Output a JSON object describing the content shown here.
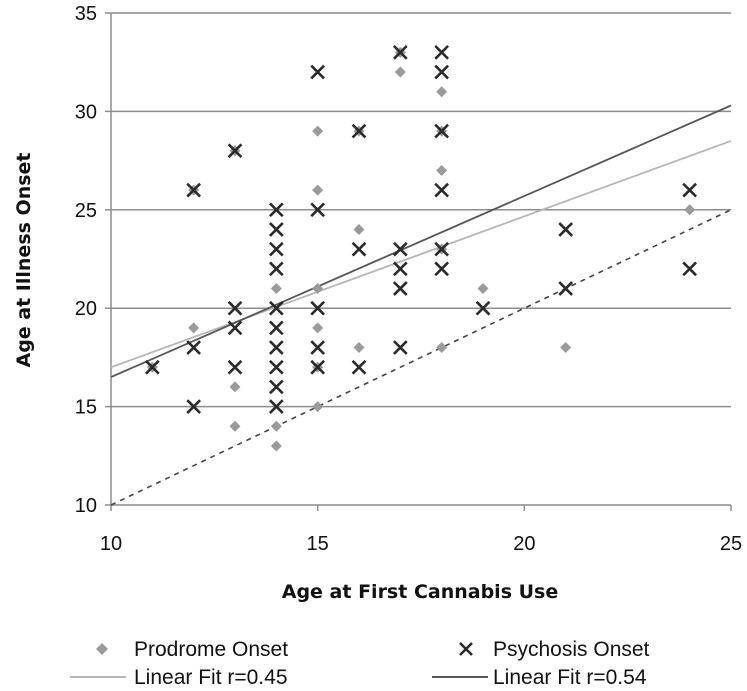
{
  "chart_data": {
    "type": "scatter",
    "xlabel": "Age at First Cannabis Use",
    "ylabel": "Age at Illness Onset",
    "xlim": [
      10,
      25
    ],
    "ylim": [
      10,
      35
    ],
    "xticks": [
      10,
      15,
      20,
      25
    ],
    "yticks": [
      10,
      15,
      20,
      25,
      30,
      35
    ],
    "grid": "horizontal",
    "legend_position": "bottom",
    "series": [
      {
        "name": "Prodrome Onset",
        "marker": "diamond",
        "color": "#9a9a9a",
        "points": [
          [
            11,
            17
          ],
          [
            12,
            19
          ],
          [
            12,
            26
          ],
          [
            13,
            14
          ],
          [
            13,
            16
          ],
          [
            13,
            28
          ],
          [
            14,
            13
          ],
          [
            14,
            14
          ],
          [
            14,
            21
          ],
          [
            15,
            15
          ],
          [
            15,
            17
          ],
          [
            15,
            19
          ],
          [
            15,
            21
          ],
          [
            15,
            26
          ],
          [
            15,
            29
          ],
          [
            16,
            18
          ],
          [
            16,
            24
          ],
          [
            16,
            29
          ],
          [
            17,
            32
          ],
          [
            17,
            33
          ],
          [
            18,
            18
          ],
          [
            18,
            23
          ],
          [
            18,
            27
          ],
          [
            18,
            29
          ],
          [
            18,
            31
          ],
          [
            19,
            21
          ],
          [
            21,
            18
          ],
          [
            24,
            25
          ]
        ]
      },
      {
        "name": "Psychosis Onset",
        "marker": "x",
        "color": "#2a2a2a",
        "points": [
          [
            11,
            17
          ],
          [
            12,
            15
          ],
          [
            12,
            18
          ],
          [
            12,
            26
          ],
          [
            13,
            17
          ],
          [
            13,
            19
          ],
          [
            13,
            20
          ],
          [
            13,
            28
          ],
          [
            14,
            15
          ],
          [
            14,
            16
          ],
          [
            14,
            17
          ],
          [
            14,
            18
          ],
          [
            14,
            19
          ],
          [
            14,
            20
          ],
          [
            14,
            22
          ],
          [
            14,
            23
          ],
          [
            14,
            24
          ],
          [
            14,
            25
          ],
          [
            15,
            17
          ],
          [
            15,
            18
          ],
          [
            15,
            20
          ],
          [
            15,
            25
          ],
          [
            15,
            32
          ],
          [
            16,
            17
          ],
          [
            16,
            23
          ],
          [
            16,
            29
          ],
          [
            17,
            18
          ],
          [
            17,
            21
          ],
          [
            17,
            22
          ],
          [
            17,
            23
          ],
          [
            17,
            33
          ],
          [
            18,
            22
          ],
          [
            18,
            23
          ],
          [
            18,
            26
          ],
          [
            18,
            29
          ],
          [
            18,
            32
          ],
          [
            18,
            33
          ],
          [
            19,
            20
          ],
          [
            21,
            21
          ],
          [
            21,
            24
          ],
          [
            24,
            22
          ],
          [
            24,
            26
          ]
        ]
      }
    ],
    "fits": [
      {
        "name": "Linear Fit r=0.45",
        "color": "#b5b5b5",
        "from": [
          10,
          17.0
        ],
        "to": [
          25,
          28.5
        ]
      },
      {
        "name": "Linear Fit r=0.54",
        "color": "#555555",
        "from": [
          10,
          16.5
        ],
        "to": [
          25,
          30.3
        ]
      }
    ],
    "reference_line": {
      "style": "dashed",
      "color": "#444444",
      "from": [
        10,
        10
      ],
      "to": [
        25,
        25
      ]
    },
    "legend": [
      {
        "label": "Prodrome Onset",
        "symbol": "diamond"
      },
      {
        "label": "Psychosis Onset",
        "symbol": "x"
      },
      {
        "label": "Linear Fit r=0.45",
        "symbol": "line-light"
      },
      {
        "label": "Linear Fit r=0.54",
        "symbol": "line-dark"
      }
    ]
  }
}
